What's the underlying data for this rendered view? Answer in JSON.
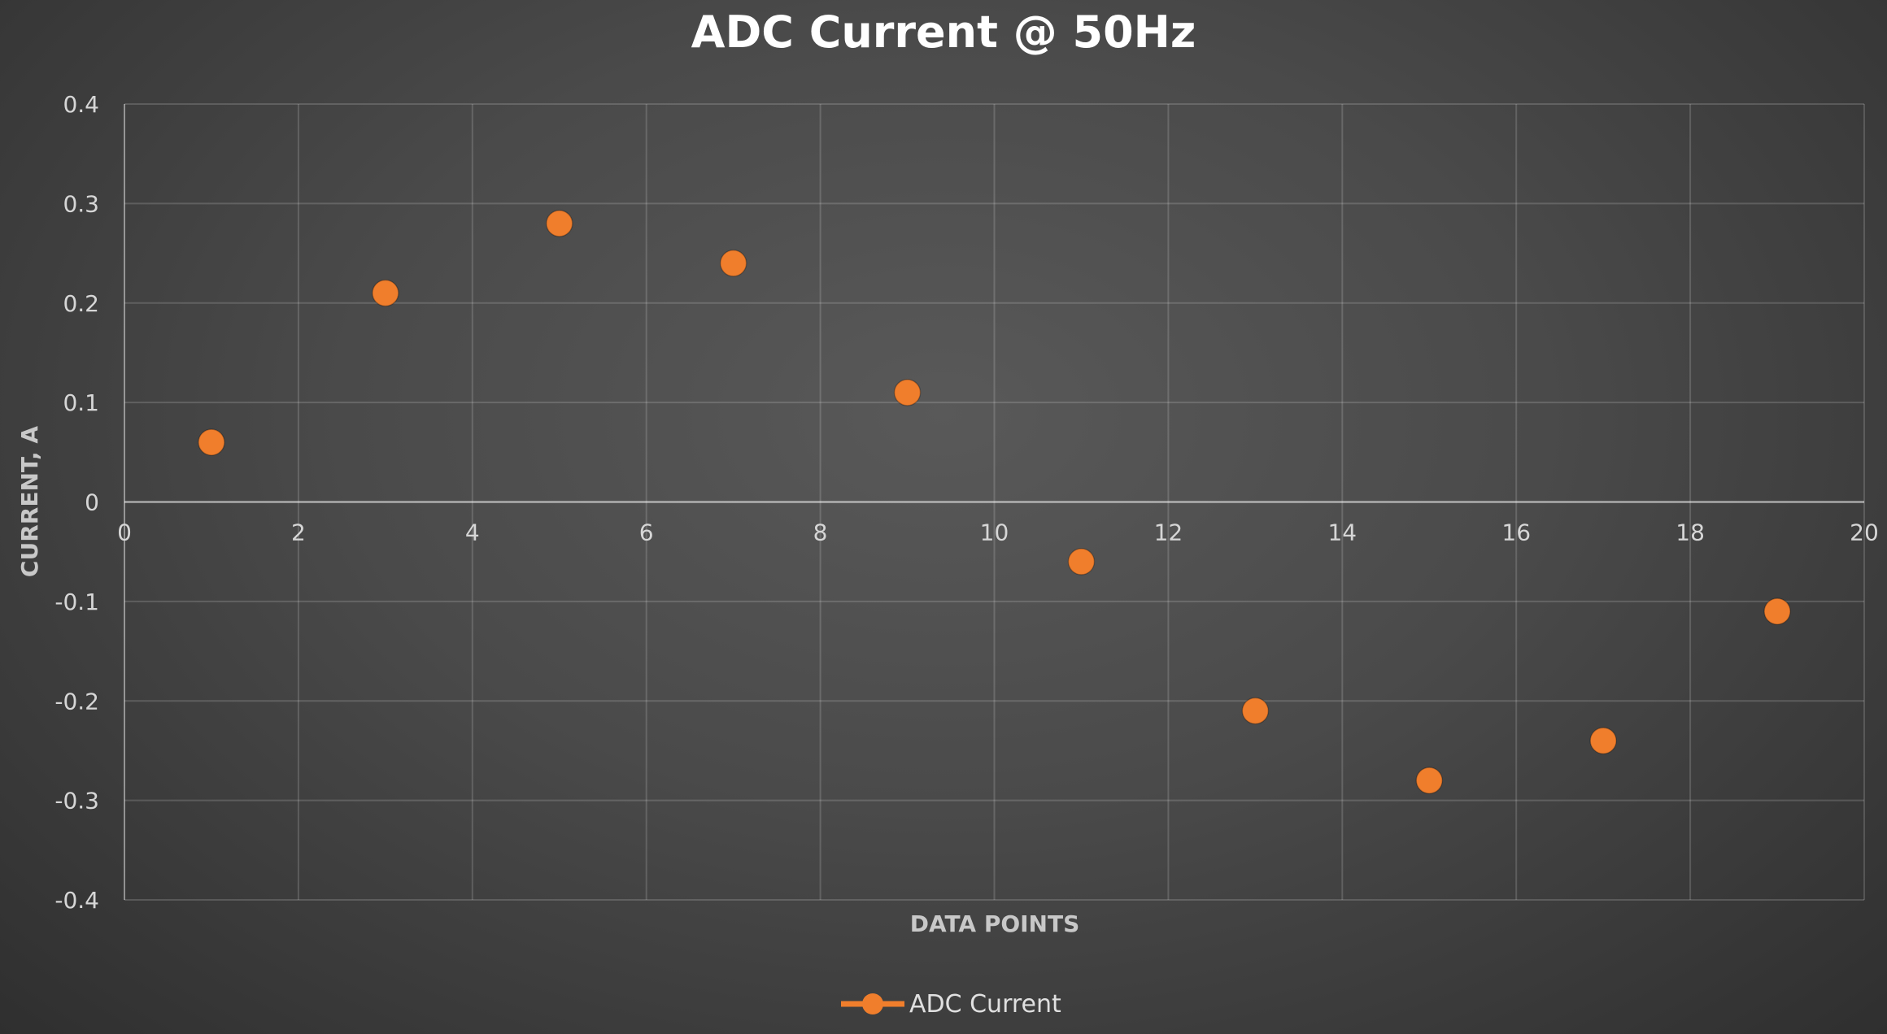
{
  "chart_data": {
    "type": "scatter",
    "title": "ADC Current @ 50Hz",
    "xlabel": "DATA POINTS",
    "ylabel": "CURRENT, A",
    "xlim": [
      0,
      20
    ],
    "ylim": [
      -0.4,
      0.4
    ],
    "x_ticks": [
      "0",
      "2",
      "4",
      "6",
      "8",
      "10",
      "12",
      "14",
      "16",
      "18",
      "20"
    ],
    "y_ticks": [
      "0.4",
      "0.3",
      "0.2",
      "0.1",
      "0",
      "-0.1",
      "-0.2",
      "-0.3",
      "-0.4"
    ],
    "grid": true,
    "legend_position": "bottom",
    "series": [
      {
        "name": "ADC Current",
        "color": "#f07e2c",
        "x": [
          1,
          3,
          5,
          7,
          9,
          11,
          13,
          15,
          17,
          19
        ],
        "y": [
          0.06,
          0.21,
          0.28,
          0.24,
          0.11,
          -0.06,
          -0.21,
          -0.28,
          -0.24,
          -0.11
        ]
      }
    ]
  }
}
